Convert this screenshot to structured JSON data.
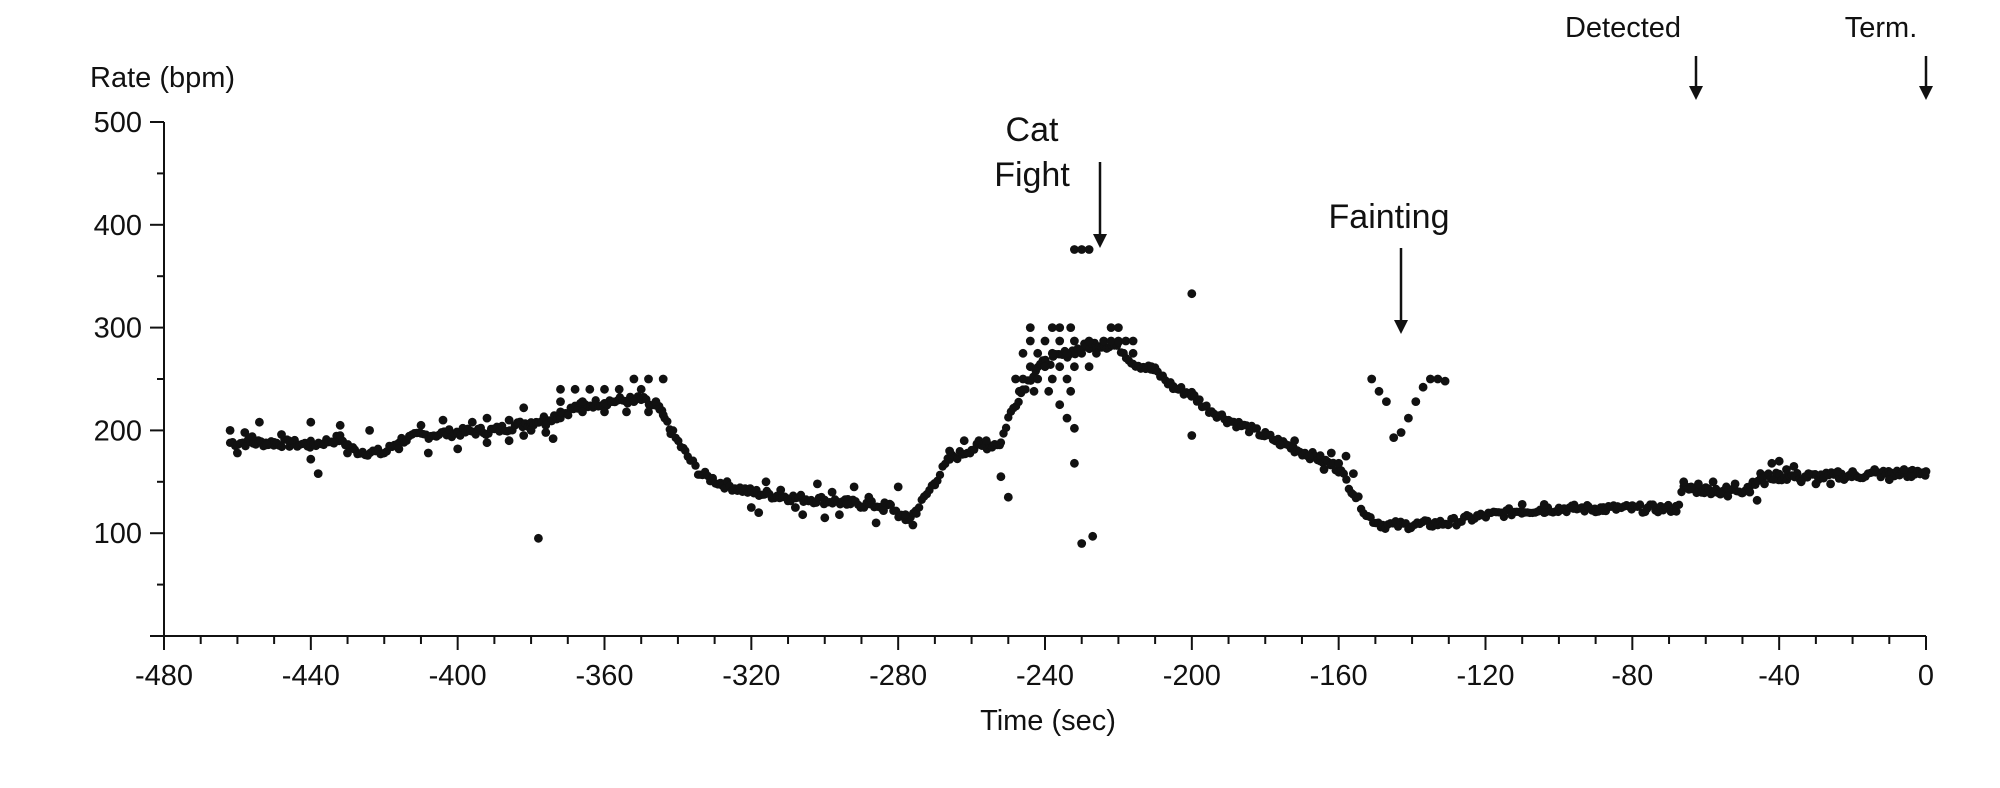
{
  "chart_data": {
    "type": "scatter",
    "title": "",
    "xlabel": "Time (sec)",
    "ylabel": "Rate (bpm)",
    "xlim": [
      -480,
      0
    ],
    "ylim": [
      0,
      500
    ],
    "x_ticks": [
      -480,
      -440,
      -400,
      -360,
      -320,
      -280,
      -240,
      -200,
      -160,
      -120,
      -80,
      -40,
      0
    ],
    "y_ticks": [
      100,
      200,
      300,
      400,
      500
    ],
    "grid": false,
    "marker_color": "#111111",
    "annotations": [
      {
        "id": "cat-fight",
        "lines": [
          "Cat",
          "Fight"
        ],
        "x": -225,
        "arrow_to_y": 380
      },
      {
        "id": "fainting",
        "lines": [
          "Fainting"
        ],
        "x": -143,
        "arrow_to_y": 298
      },
      {
        "id": "detected",
        "lines": [
          "Detected"
        ],
        "x": -63,
        "arrow_to_y": 522
      },
      {
        "id": "term",
        "lines": [
          "Term."
        ],
        "x": 0,
        "arrow_to_y": 522
      }
    ],
    "trend": [
      [
        -462,
        188
      ],
      [
        -450,
        188
      ],
      [
        -440,
        186
      ],
      [
        -432,
        192
      ],
      [
        -428,
        180
      ],
      [
        -420,
        178
      ],
      [
        -416,
        190
      ],
      [
        -410,
        195
      ],
      [
        -400,
        198
      ],
      [
        -390,
        200
      ],
      [
        -380,
        208
      ],
      [
        -372,
        215
      ],
      [
        -368,
        222
      ],
      [
        -360,
        228
      ],
      [
        -350,
        230
      ],
      [
        -345,
        220
      ],
      [
        -342,
        200
      ],
      [
        -338,
        178
      ],
      [
        -334,
        158
      ],
      [
        -328,
        148
      ],
      [
        -320,
        140
      ],
      [
        -310,
        135
      ],
      [
        -300,
        132
      ],
      [
        -290,
        128
      ],
      [
        -282,
        126
      ],
      [
        -278,
        112
      ],
      [
        -275,
        122
      ],
      [
        -270,
        150
      ],
      [
        -266,
        172
      ],
      [
        -260,
        182
      ],
      [
        -252,
        188
      ],
      [
        -250,
        212
      ],
      [
        -246,
        240
      ],
      [
        -242,
        262
      ],
      [
        -236,
        272
      ],
      [
        -230,
        280
      ],
      [
        -226,
        284
      ],
      [
        -220,
        282
      ],
      [
        -216,
        266
      ],
      [
        -210,
        258
      ],
      [
        -205,
        242
      ],
      [
        -200,
        235
      ],
      [
        -196,
        222
      ],
      [
        -190,
        210
      ],
      [
        -180,
        195
      ],
      [
        -172,
        182
      ],
      [
        -165,
        172
      ],
      [
        -160,
        163
      ],
      [
        -156,
        140
      ],
      [
        -152,
        116
      ],
      [
        -148,
        108
      ],
      [
        -140,
        108
      ],
      [
        -130,
        110
      ],
      [
        -122,
        116
      ],
      [
        -110,
        122
      ],
      [
        -100,
        124
      ],
      [
        -90,
        124
      ],
      [
        -80,
        124
      ],
      [
        -68,
        124
      ],
      [
        -66,
        143
      ],
      [
        -60,
        142
      ],
      [
        -50,
        142
      ],
      [
        -45,
        155
      ],
      [
        -40,
        155
      ],
      [
        -30,
        155
      ],
      [
        -20,
        156
      ],
      [
        -10,
        158
      ],
      [
        0,
        158
      ]
    ],
    "points": [
      [
        -232,
        376
      ],
      [
        -230,
        376
      ],
      [
        -228,
        376
      ],
      [
        -200,
        333
      ],
      [
        -151,
        250
      ],
      [
        -149,
        238
      ],
      [
        -147,
        228
      ],
      [
        -145,
        193
      ],
      [
        -143,
        198
      ],
      [
        -141,
        212
      ],
      [
        -139,
        228
      ],
      [
        -137,
        242
      ],
      [
        -135,
        250
      ],
      [
        -133,
        250
      ],
      [
        -131,
        248
      ],
      [
        -378,
        95
      ],
      [
        -230,
        90
      ],
      [
        -227,
        97
      ],
      [
        -232,
        168
      ],
      [
        -252,
        155
      ],
      [
        -250,
        135
      ],
      [
        -200,
        195
      ],
      [
        -216,
        275
      ],
      [
        -211,
        262
      ],
      [
        -244,
        300
      ],
      [
        -238,
        300
      ],
      [
        -236,
        300
      ],
      [
        -233,
        300
      ],
      [
        -222,
        300
      ],
      [
        -220,
        300
      ],
      [
        -244,
        287
      ],
      [
        -240,
        287
      ],
      [
        -236,
        287
      ],
      [
        -232,
        287
      ],
      [
        -228,
        287
      ],
      [
        -224,
        287
      ],
      [
        -222,
        287
      ],
      [
        -220,
        287
      ],
      [
        -218,
        287
      ],
      [
        -216,
        287
      ],
      [
        -246,
        275
      ],
      [
        -242,
        275
      ],
      [
        -238,
        275
      ],
      [
        -234,
        275
      ],
      [
        -230,
        275
      ],
      [
        -226,
        275
      ],
      [
        -244,
        262
      ],
      [
        -240,
        262
      ],
      [
        -236,
        262
      ],
      [
        -232,
        262
      ],
      [
        -228,
        262
      ],
      [
        -248,
        250
      ],
      [
        -246,
        250
      ],
      [
        -242,
        250
      ],
      [
        -238,
        250
      ],
      [
        -234,
        250
      ],
      [
        -247,
        238
      ],
      [
        -243,
        238
      ],
      [
        -239,
        238
      ],
      [
        -233,
        238
      ],
      [
        -236,
        225
      ],
      [
        -234,
        212
      ],
      [
        -232,
        202
      ],
      [
        -372,
        240
      ],
      [
        -368,
        240
      ],
      [
        -364,
        240
      ],
      [
        -360,
        240
      ],
      [
        -356,
        240
      ],
      [
        -352,
        250
      ],
      [
        -348,
        250
      ],
      [
        -344,
        250
      ],
      [
        -350,
        240
      ],
      [
        -372,
        228
      ],
      [
        -366,
        228
      ],
      [
        -358,
        228
      ],
      [
        -352,
        228
      ],
      [
        -346,
        228
      ],
      [
        -372,
        218
      ],
      [
        -366,
        218
      ],
      [
        -360,
        218
      ],
      [
        -354,
        218
      ],
      [
        -348,
        218
      ],
      [
        -344,
        215
      ],
      [
        -440,
        208
      ],
      [
        -432,
        205
      ],
      [
        -424,
        200
      ],
      [
        -410,
        205
      ],
      [
        -404,
        210
      ],
      [
        -396,
        208
      ],
      [
        -392,
        212
      ],
      [
        -386,
        210
      ],
      [
        -382,
        222
      ],
      [
        -376,
        205
      ],
      [
        -382,
        195
      ],
      [
        -376,
        198
      ],
      [
        -440,
        172
      ],
      [
        -434,
        188
      ],
      [
        -430,
        178
      ],
      [
        -416,
        182
      ],
      [
        -408,
        178
      ],
      [
        -400,
        182
      ],
      [
        -392,
        188
      ],
      [
        -386,
        190
      ],
      [
        -380,
        200
      ],
      [
        -374,
        192
      ],
      [
        -438,
        158
      ],
      [
        -446,
        190
      ],
      [
        -452,
        186
      ],
      [
        -456,
        194
      ],
      [
        -462,
        200
      ],
      [
        -460,
        178
      ],
      [
        -458,
        198
      ],
      [
        -454,
        208
      ],
      [
        -448,
        196
      ],
      [
        -320,
        125
      ],
      [
        -316,
        150
      ],
      [
        -312,
        142
      ],
      [
        -306,
        118
      ],
      [
        -302,
        148
      ],
      [
        -298,
        140
      ],
      [
        -296,
        118
      ],
      [
        -292,
        145
      ],
      [
        -288,
        135
      ],
      [
        -286,
        110
      ],
      [
        -284,
        122
      ],
      [
        -280,
        145
      ],
      [
        -278,
        118
      ],
      [
        -276,
        108
      ],
      [
        -318,
        120
      ],
      [
        -308,
        125
      ],
      [
        -300,
        115
      ],
      [
        -294,
        128
      ],
      [
        -168,
        175
      ],
      [
        -164,
        162
      ],
      [
        -162,
        178
      ],
      [
        -160,
        168
      ],
      [
        -158,
        175
      ],
      [
        -156,
        158
      ],
      [
        -172,
        190
      ],
      [
        -176,
        186
      ],
      [
        -110,
        128
      ],
      [
        -104,
        128
      ],
      [
        -96,
        124
      ],
      [
        -88,
        122
      ],
      [
        -84,
        126
      ],
      [
        -76,
        124
      ],
      [
        -104,
        120
      ],
      [
        -92,
        126
      ],
      [
        -66,
        150
      ],
      [
        -64,
        145
      ],
      [
        -62,
        148
      ],
      [
        -58,
        150
      ],
      [
        -56,
        138
      ],
      [
        -54,
        136
      ],
      [
        -52,
        148
      ],
      [
        -48,
        140
      ],
      [
        -46,
        132
      ],
      [
        -44,
        148
      ],
      [
        -42,
        168
      ],
      [
        -40,
        170
      ],
      [
        -38,
        162
      ],
      [
        -36,
        165
      ],
      [
        -34,
        150
      ],
      [
        -32,
        158
      ],
      [
        -30,
        148
      ],
      [
        -26,
        148
      ],
      [
        -24,
        160
      ],
      [
        -20,
        160
      ],
      [
        -14,
        162
      ],
      [
        -10,
        152
      ],
      [
        -6,
        162
      ],
      [
        -4,
        155
      ],
      [
        0,
        160
      ],
      [
        -266,
        180
      ],
      [
        -262,
        190
      ],
      [
        -258,
        190
      ],
      [
        -256,
        190
      ]
    ]
  }
}
